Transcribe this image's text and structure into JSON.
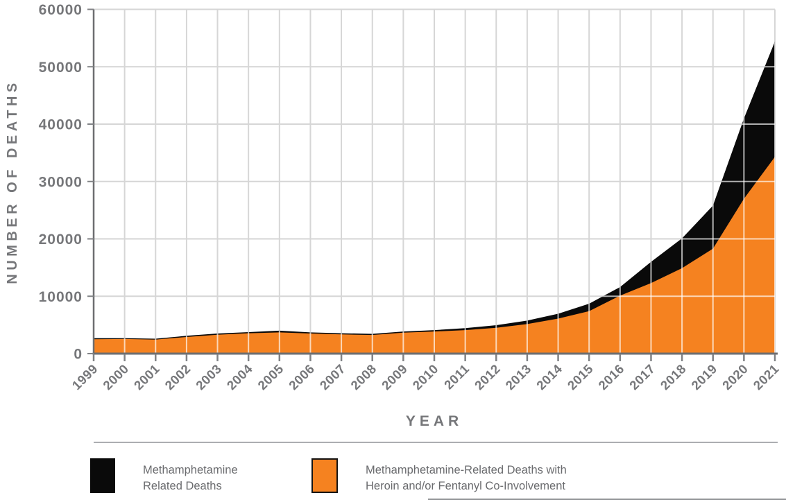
{
  "chart_data": {
    "type": "area",
    "title": "",
    "x": [
      1999,
      2000,
      2001,
      2002,
      2003,
      2004,
      2005,
      2006,
      2007,
      2008,
      2009,
      2010,
      2011,
      2012,
      2013,
      2014,
      2015,
      2016,
      2017,
      2018,
      2019,
      2020,
      2021
    ],
    "series": [
      {
        "name": "Methamphetamine Related Deaths",
        "color": "#0A0A0A",
        "values": [
          2700,
          2700,
          2600,
          3100,
          3500,
          3750,
          4000,
          3700,
          3550,
          3450,
          3850,
          4100,
          4450,
          4950,
          5750,
          6950,
          8700,
          11600,
          16000,
          20100,
          25800,
          41000,
          54400
        ]
      },
      {
        "name": "Methamphetamine-Related Deaths with Heroin and/or Fentanyl Co-Involvement",
        "color": "#F58220",
        "values": [
          2500,
          2550,
          2450,
          2900,
          3300,
          3550,
          3700,
          3500,
          3350,
          3250,
          3650,
          3850,
          4100,
          4500,
          5150,
          6100,
          7400,
          10100,
          12300,
          14900,
          18300,
          27000,
          34300
        ]
      }
    ],
    "xlabel": "YEAR",
    "ylabel": "NUMBER OF DEATHS",
    "ylim": [
      0,
      60000
    ],
    "y_ticks": [
      0,
      10000,
      20000,
      30000,
      40000,
      50000,
      60000
    ],
    "grid": true,
    "legend_position": "bottom",
    "note": "orange series drawn over black series; black envelope = total meth-related deaths"
  },
  "axes": {
    "x_title": "YEAR",
    "y_title": "NUMBER OF DEATHS",
    "y_tick_labels": [
      "0",
      "10000",
      "20000",
      "30000",
      "40000",
      "50000",
      "60000"
    ],
    "x_tick_labels": [
      "1999",
      "2000",
      "2001",
      "2002",
      "2003",
      "2004",
      "2005",
      "2006",
      "2007",
      "2008",
      "2009",
      "2010",
      "2011",
      "2012",
      "2013",
      "2014",
      "2015",
      "2016",
      "2017",
      "2018",
      "2019",
      "2020",
      "2021"
    ]
  },
  "legend": {
    "items": [
      {
        "line1": "Methamphetamine",
        "line2": "Related Deaths",
        "color": "#0A0A0A"
      },
      {
        "line1": "Methamphetamine-Related Deaths with",
        "line2": "Heroin and/or Fentanyl Co-Involvement",
        "color": "#F58220"
      }
    ]
  },
  "colors": {
    "gridline": "#D6D6D6",
    "gridline_on_area": "rgba(255,255,255,0.68)",
    "axis_line": "#6D6E71",
    "tick": "#808285",
    "label_text": "#76777A",
    "legend_text": "#6A6B6E"
  }
}
